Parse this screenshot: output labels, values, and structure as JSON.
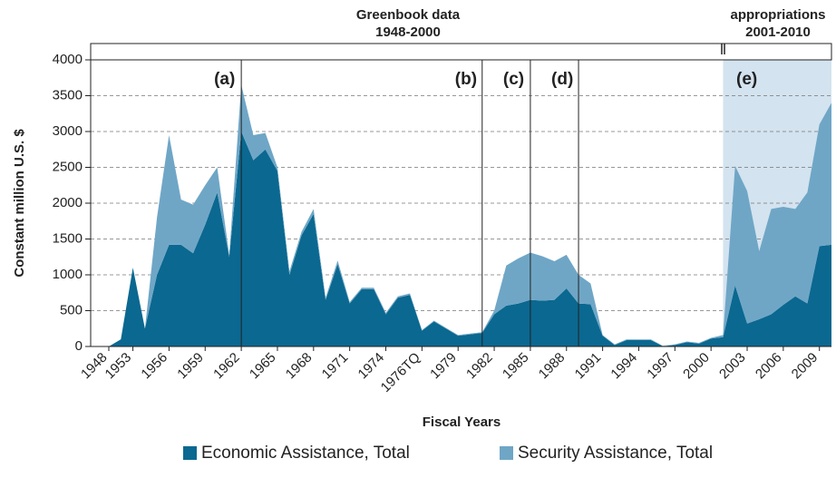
{
  "chart_data": {
    "type": "stacked-area",
    "y_label": "Constant million U.S. $",
    "x_label": "Fiscal Years",
    "header_left": [
      "Greenbook data",
      "1948-2000"
    ],
    "header_right": [
      "appropriations",
      "2001-2010"
    ],
    "annotations": [
      "(a)",
      "(b)",
      "(c)",
      "(d)",
      "(e)"
    ],
    "categories": [
      "1948",
      null,
      "1953",
      null,
      null,
      "1956",
      null,
      null,
      "1959",
      null,
      null,
      "1962",
      null,
      null,
      "1965",
      null,
      null,
      "1968",
      null,
      null,
      "1971",
      null,
      null,
      "1974",
      null,
      null,
      "1976TQ",
      null,
      null,
      "1979",
      null,
      null,
      "1982",
      null,
      null,
      "1985",
      null,
      null,
      "1988",
      null,
      null,
      "1991",
      null,
      null,
      "1994",
      null,
      null,
      "1997",
      null,
      null,
      "2000",
      null,
      null,
      "2003",
      null,
      null,
      "2006",
      null,
      null,
      "2009",
      null
    ],
    "series": [
      {
        "name": "Economic Assistance, Total",
        "color": "#0b6890",
        "values": [
          0,
          100,
          1100,
          250,
          1000,
          1420,
          1420,
          1300,
          1700,
          2150,
          1250,
          3000,
          2600,
          2750,
          2450,
          1000,
          1550,
          1850,
          650,
          1150,
          600,
          800,
          800,
          450,
          680,
          720,
          220,
          350,
          250,
          150,
          170,
          190,
          450,
          570,
          600,
          650,
          640,
          650,
          810,
          600,
          590,
          150,
          20,
          90,
          90,
          90,
          5,
          20,
          60,
          40,
          110,
          130,
          850,
          320,
          380,
          450,
          580,
          700,
          600,
          1400,
          1420
        ]
      },
      {
        "name": "Security Assistance, Total",
        "color": "#6fa6c6",
        "values": [
          0,
          0,
          0,
          0,
          800,
          1530,
          630,
          680,
          550,
          350,
          30,
          650,
          350,
          230,
          50,
          50,
          50,
          70,
          30,
          50,
          20,
          20,
          20,
          20,
          20,
          20,
          10,
          10,
          10,
          10,
          10,
          10,
          50,
          560,
          630,
          660,
          620,
          540,
          470,
          400,
          290,
          10,
          10,
          10,
          10,
          10,
          5,
          10,
          10,
          10,
          10,
          30,
          1670,
          1850,
          950,
          1470,
          1370,
          1220,
          1550,
          1700,
          1980
        ]
      }
    ],
    "ylim": [
      0,
      4000
    ],
    "yticks": [
      0,
      500,
      1000,
      1500,
      2000,
      2500,
      3000,
      3500,
      4000
    ],
    "grid": true,
    "shade_color": "#d3e3ef"
  }
}
